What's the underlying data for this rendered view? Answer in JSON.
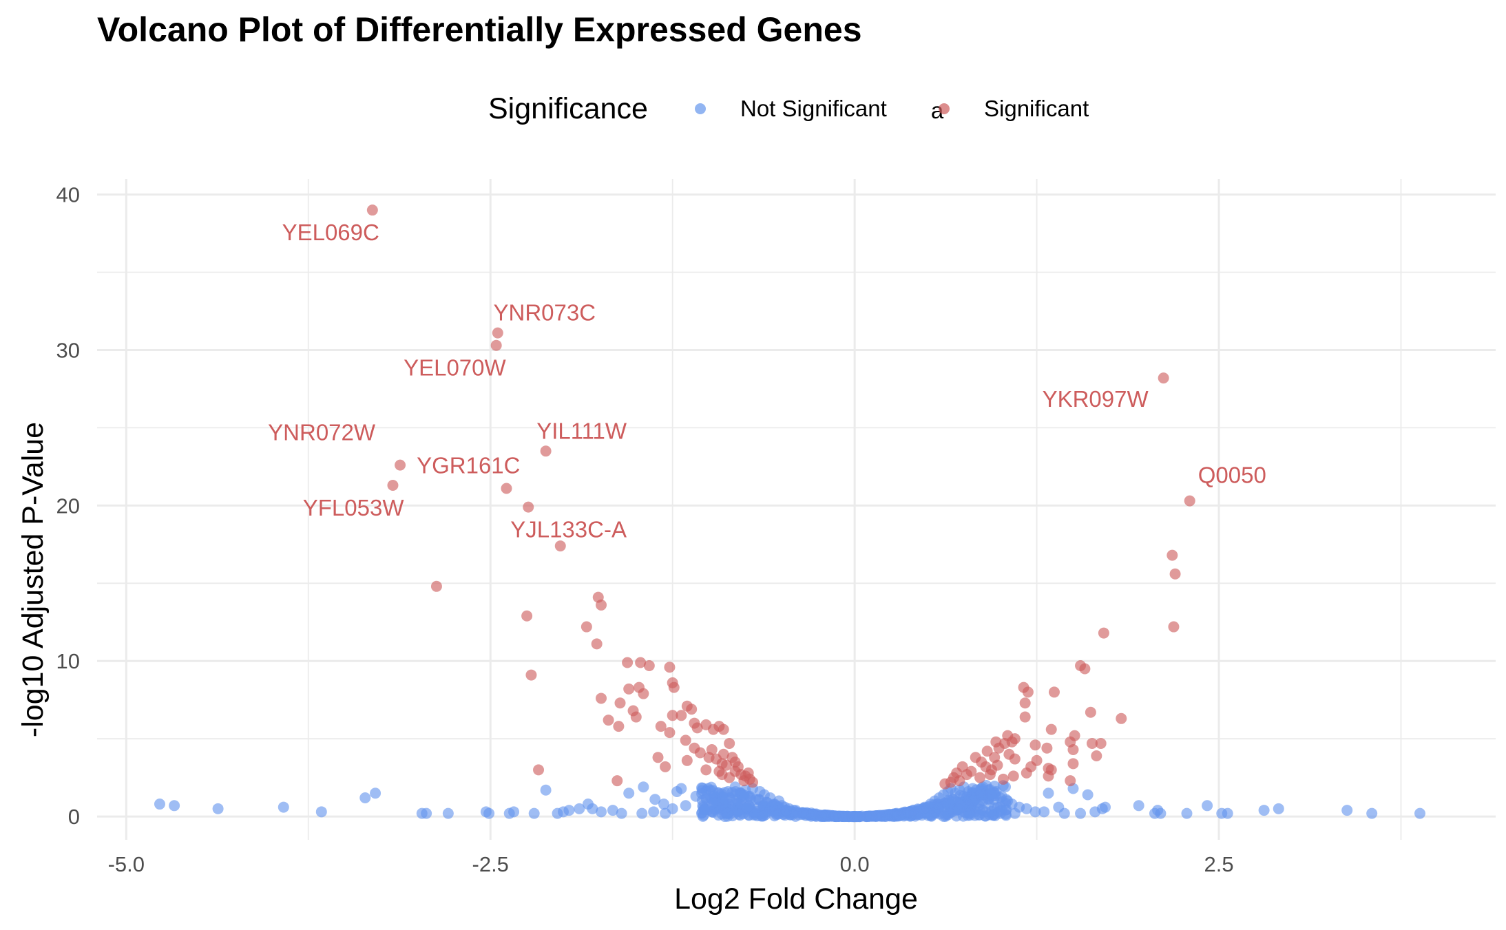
{
  "chart_data": {
    "type": "scatter",
    "title": "Volcano Plot of Differentially Expressed Genes",
    "xlabel": "Log2 Fold Change",
    "ylabel": "-log10 Adjusted P-Value",
    "xlim": [
      -5.2,
      4.4
    ],
    "ylim": [
      -1.5,
      41.0
    ],
    "x_ticks": [
      -5.0,
      -2.5,
      0.0,
      2.5
    ],
    "x_tick_labels": [
      "-5.0",
      "-2.5",
      "0.0",
      "2.5"
    ],
    "y_ticks": [
      0,
      10,
      20,
      30,
      40
    ],
    "y_tick_labels": [
      "0",
      "10",
      "20",
      "30",
      "40"
    ],
    "grid": true,
    "legend": {
      "title": "Significance",
      "position": "top",
      "entries": [
        {
          "label": "Not Significant",
          "color": "#6495ED",
          "key_glyph": "point"
        },
        {
          "label": "Significant",
          "color": "#CD5C5C",
          "key_glyph": "a"
        }
      ]
    },
    "colors": {
      "not_significant": "#6495ED",
      "significant": "#CD5C5C"
    },
    "labeled_genes": [
      {
        "gene": "YEL069C",
        "x": -3.31,
        "y": 39.0
      },
      {
        "gene": "YNR073C",
        "x": -2.45,
        "y": 31.1
      },
      {
        "gene": "YEL070W",
        "x": -2.46,
        "y": 30.3
      },
      {
        "gene": "YKR097W",
        "x": 2.12,
        "y": 28.2
      },
      {
        "gene": "YIL111W",
        "x": -2.12,
        "y": 23.5
      },
      {
        "gene": "YNR072W",
        "x": -3.12,
        "y": 22.6
      },
      {
        "gene": "YFL053W",
        "x": -3.17,
        "y": 21.3
      },
      {
        "gene": "YGR161C",
        "x": -2.39,
        "y": 21.1
      },
      {
        "gene": "Q0050",
        "x": 2.3,
        "y": 20.3
      },
      {
        "gene": "YJL133C-A",
        "x": -2.24,
        "y": 19.9
      }
    ],
    "significant_points": [
      [
        -2.02,
        17.4
      ],
      [
        -2.87,
        14.8
      ],
      [
        -1.76,
        14.1
      ],
      [
        -1.74,
        13.6
      ],
      [
        -2.25,
        12.9
      ],
      [
        -1.84,
        12.2
      ],
      [
        -1.77,
        11.1
      ],
      [
        -2.22,
        9.1
      ],
      [
        -1.56,
        9.9
      ],
      [
        -1.47,
        9.9
      ],
      [
        -1.41,
        9.7
      ],
      [
        -1.27,
        9.6
      ],
      [
        -1.25,
        8.6
      ],
      [
        -1.24,
        8.3
      ],
      [
        -1.55,
        8.2
      ],
      [
        -1.48,
        8.3
      ],
      [
        -1.45,
        7.9
      ],
      [
        -1.74,
        7.6
      ],
      [
        -1.61,
        7.3
      ],
      [
        -1.15,
        7.1
      ],
      [
        -1.12,
        6.9
      ],
      [
        -1.52,
        6.8
      ],
      [
        -1.5,
        6.4
      ],
      [
        -1.69,
        6.2
      ],
      [
        -1.62,
        5.8
      ],
      [
        -1.25,
        6.5
      ],
      [
        -1.19,
        6.5
      ],
      [
        -1.1,
        6.0
      ],
      [
        -1.08,
        5.7
      ],
      [
        -1.02,
        5.9
      ],
      [
        -0.97,
        5.6
      ],
      [
        -0.93,
        5.8
      ],
      [
        -0.9,
        5.6
      ],
      [
        -1.33,
        5.8
      ],
      [
        -1.27,
        5.4
      ],
      [
        -1.16,
        4.9
      ],
      [
        -1.1,
        4.4
      ],
      [
        -1.06,
        4.1
      ],
      [
        -0.98,
        4.3
      ],
      [
        -0.86,
        4.7
      ],
      [
        -0.9,
        4.0
      ],
      [
        -0.84,
        3.8
      ],
      [
        -0.95,
        3.7
      ],
      [
        -0.91,
        3.4
      ],
      [
        -0.88,
        3.3
      ],
      [
        -0.82,
        3.5
      ],
      [
        -0.8,
        3.2
      ],
      [
        -1.0,
        3.8
      ],
      [
        -1.35,
        3.8
      ],
      [
        -1.3,
        3.2
      ],
      [
        -1.15,
        3.6
      ],
      [
        -1.02,
        3.0
      ],
      [
        -0.91,
        2.7
      ],
      [
        -1.63,
        2.3
      ],
      [
        -2.17,
        3.0
      ],
      [
        -0.82,
        2.9
      ],
      [
        -0.78,
        2.7
      ],
      [
        -0.75,
        2.6
      ],
      [
        -0.73,
        2.8
      ],
      [
        -0.76,
        2.3
      ],
      [
        -0.72,
        2.4
      ],
      [
        -0.86,
        2.5
      ],
      [
        -0.93,
        2.9
      ],
      [
        -0.7,
        2.2
      ],
      [
        2.18,
        16.8
      ],
      [
        2.2,
        15.6
      ],
      [
        2.19,
        12.2
      ],
      [
        1.71,
        11.8
      ],
      [
        1.55,
        9.7
      ],
      [
        1.58,
        9.5
      ],
      [
        1.16,
        8.3
      ],
      [
        1.19,
        8.0
      ],
      [
        1.37,
        8.0
      ],
      [
        1.17,
        7.3
      ],
      [
        1.62,
        6.7
      ],
      [
        1.83,
        6.3
      ],
      [
        1.17,
        6.4
      ],
      [
        1.51,
        5.2
      ],
      [
        1.35,
        5.6
      ],
      [
        1.05,
        5.2
      ],
      [
        1.1,
        5.0
      ],
      [
        1.08,
        4.8
      ],
      [
        1.03,
        4.7
      ],
      [
        0.97,
        4.8
      ],
      [
        0.99,
        4.4
      ],
      [
        1.24,
        4.6
      ],
      [
        1.48,
        4.8
      ],
      [
        1.5,
        4.3
      ],
      [
        1.63,
        4.7
      ],
      [
        1.69,
        4.7
      ],
      [
        1.32,
        4.4
      ],
      [
        0.91,
        4.2
      ],
      [
        0.96,
        3.8
      ],
      [
        1.06,
        4.0
      ],
      [
        1.1,
        3.7
      ],
      [
        1.25,
        3.6
      ],
      [
        1.21,
        3.2
      ],
      [
        0.83,
        3.8
      ],
      [
        0.87,
        3.5
      ],
      [
        0.9,
        3.2
      ],
      [
        0.94,
        3.0
      ],
      [
        0.98,
        3.3
      ],
      [
        1.33,
        3.1
      ],
      [
        1.35,
        3.0
      ],
      [
        1.33,
        2.6
      ],
      [
        1.5,
        3.4
      ],
      [
        1.66,
        3.9
      ],
      [
        1.48,
        2.3
      ],
      [
        1.18,
        2.8
      ],
      [
        1.09,
        2.6
      ],
      [
        0.74,
        3.2
      ],
      [
        0.77,
        2.7
      ],
      [
        0.8,
        2.9
      ],
      [
        0.7,
        2.8
      ],
      [
        0.68,
        2.5
      ],
      [
        0.72,
        2.3
      ],
      [
        0.66,
        2.2
      ],
      [
        0.86,
        2.5
      ],
      [
        0.62,
        2.1
      ],
      [
        0.93,
        2.7
      ],
      [
        1.02,
        2.4
      ]
    ],
    "not_significant_points": [
      [
        -4.77,
        0.8
      ],
      [
        -4.67,
        0.7
      ],
      [
        -4.37,
        0.5
      ],
      [
        -3.92,
        0.6
      ],
      [
        -3.66,
        0.3
      ],
      [
        -3.36,
        1.2
      ],
      [
        -3.29,
        1.5
      ],
      [
        -2.97,
        0.2
      ],
      [
        -2.94,
        0.2
      ],
      [
        -2.79,
        0.2
      ],
      [
        -2.53,
        0.3
      ],
      [
        -2.51,
        0.2
      ],
      [
        -2.37,
        0.2
      ],
      [
        -2.34,
        0.3
      ],
      [
        -2.2,
        0.2
      ],
      [
        -2.04,
        0.2
      ],
      [
        -2.0,
        0.3
      ],
      [
        -1.96,
        0.4
      ],
      [
        -1.89,
        0.5
      ],
      [
        -1.83,
        0.8
      ],
      [
        -1.8,
        0.5
      ],
      [
        -1.74,
        0.3
      ],
      [
        -1.66,
        0.4
      ],
      [
        -1.6,
        0.2
      ],
      [
        -1.55,
        1.5
      ],
      [
        -1.45,
        1.9
      ],
      [
        -1.37,
        1.1
      ],
      [
        -1.31,
        0.8
      ],
      [
        -1.25,
        0.5
      ],
      [
        -1.16,
        0.7
      ],
      [
        -1.09,
        1.3
      ],
      [
        -1.02,
        1.2
      ],
      [
        -0.95,
        0.9
      ],
      [
        -0.9,
        0.5
      ],
      [
        -1.46,
        0.2
      ],
      [
        -1.38,
        0.3
      ],
      [
        -1.3,
        0.2
      ],
      [
        -2.12,
        1.7
      ],
      [
        -1.22,
        1.6
      ],
      [
        -1.19,
        1.8
      ],
      [
        -0.87,
        1.6
      ],
      [
        -0.82,
        1.9
      ],
      [
        -0.78,
        1.5
      ],
      [
        -0.75,
        1.7
      ],
      [
        -0.72,
        1.3
      ],
      [
        -0.7,
        1.8
      ],
      [
        -0.68,
        1.1
      ],
      [
        -0.65,
        1.6
      ],
      [
        -0.62,
        1.4
      ],
      [
        -0.6,
        0.9
      ],
      [
        -0.58,
        1.2
      ],
      [
        -0.55,
        0.8
      ],
      [
        -0.52,
        1.0
      ],
      [
        -0.5,
        0.7
      ],
      [
        -0.48,
        0.6
      ],
      [
        -0.45,
        0.5
      ],
      [
        -0.42,
        0.4
      ],
      [
        -0.4,
        0.3
      ],
      [
        -0.36,
        0.25
      ],
      [
        -0.32,
        0.2
      ],
      [
        -0.28,
        0.15
      ],
      [
        -0.24,
        0.1
      ],
      [
        -0.2,
        0.08
      ],
      [
        -0.15,
        0.05
      ],
      [
        -0.1,
        0.03
      ],
      [
        -0.05,
        0.02
      ],
      [
        0.0,
        0.0
      ],
      [
        0.05,
        0.02
      ],
      [
        0.1,
        0.03
      ],
      [
        0.15,
        0.05
      ],
      [
        0.2,
        0.08
      ],
      [
        0.24,
        0.1
      ],
      [
        0.28,
        0.15
      ],
      [
        0.32,
        0.2
      ],
      [
        0.36,
        0.25
      ],
      [
        0.4,
        0.3
      ],
      [
        0.44,
        0.45
      ],
      [
        0.48,
        0.6
      ],
      [
        0.52,
        0.8
      ],
      [
        0.55,
        1.0
      ],
      [
        0.58,
        1.2
      ],
      [
        0.61,
        1.4
      ],
      [
        0.64,
        1.6
      ],
      [
        0.66,
        1.8
      ],
      [
        0.69,
        1.5
      ],
      [
        0.72,
        1.7
      ],
      [
        0.75,
        1.9
      ],
      [
        0.78,
        1.6
      ],
      [
        0.81,
        1.8
      ],
      [
        0.85,
        1.4
      ],
      [
        0.88,
        1.9
      ],
      [
        0.92,
        1.7
      ],
      [
        0.96,
        1.5
      ],
      [
        1.0,
        1.2
      ],
      [
        1.05,
        1.0
      ],
      [
        1.08,
        0.8
      ],
      [
        1.13,
        0.6
      ],
      [
        1.18,
        0.5
      ],
      [
        1.24,
        0.3
      ],
      [
        0.7,
        0.4
      ],
      [
        0.8,
        0.6
      ],
      [
        0.9,
        0.3
      ],
      [
        1.0,
        0.2
      ],
      [
        1.1,
        0.2
      ],
      [
        1.3,
        0.3
      ],
      [
        1.33,
        1.5
      ],
      [
        1.4,
        0.6
      ],
      [
        1.44,
        0.2
      ],
      [
        1.5,
        1.8
      ],
      [
        1.55,
        0.2
      ],
      [
        1.6,
        1.4
      ],
      [
        1.65,
        0.3
      ],
      [
        1.7,
        0.5
      ],
      [
        1.72,
        0.6
      ],
      [
        1.95,
        0.7
      ],
      [
        2.06,
        0.2
      ],
      [
        2.08,
        0.4
      ],
      [
        2.1,
        0.2
      ],
      [
        2.28,
        0.2
      ],
      [
        2.42,
        0.7
      ],
      [
        2.52,
        0.2
      ],
      [
        2.56,
        0.2
      ],
      [
        2.81,
        0.4
      ],
      [
        2.91,
        0.5
      ],
      [
        3.38,
        0.4
      ],
      [
        3.55,
        0.2
      ],
      [
        3.88,
        0.2
      ],
      [
        -1.05,
        0.2
      ],
      [
        -0.98,
        0.3
      ],
      [
        -0.85,
        0.2
      ],
      [
        -0.8,
        0.4
      ],
      [
        -0.92,
        0.8
      ]
    ]
  }
}
